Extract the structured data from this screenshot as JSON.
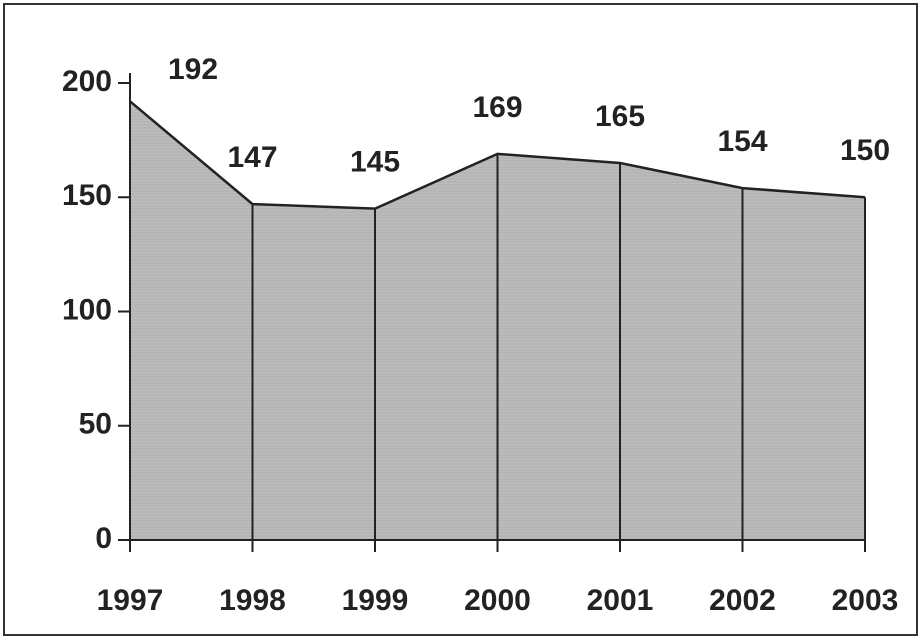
{
  "chart_data": {
    "type": "area",
    "x": [
      1997,
      1998,
      1999,
      2000,
      2001,
      2002,
      2003
    ],
    "values": [
      192,
      147,
      145,
      169,
      165,
      154,
      150
    ],
    "color": "#b9b9b9",
    "xlim": [
      1997,
      2003
    ],
    "xticks": [
      1997,
      1998,
      1999,
      2000,
      2001,
      2002,
      2003
    ],
    "ylim": [
      0,
      200
    ],
    "yticks": [
      0,
      50,
      100,
      150,
      200
    ]
  }
}
